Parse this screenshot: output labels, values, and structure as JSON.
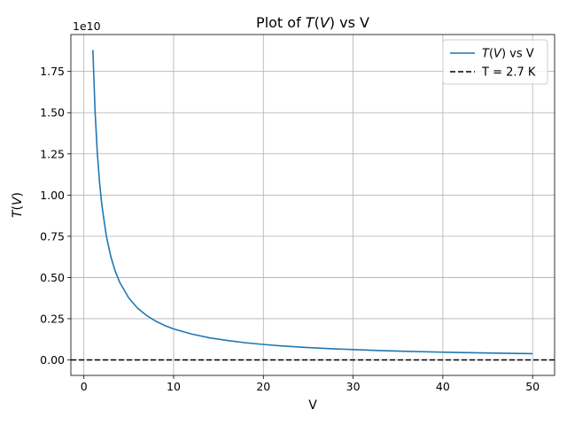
{
  "chart_data": {
    "type": "line",
    "title": "Plot of T(V) vs V",
    "xlabel": "V",
    "ylabel": "T(V)",
    "y_offset_label": "1e10",
    "xlim": [
      -1.45,
      52.45
    ],
    "ylim": [
      -0.094,
      1.974
    ],
    "y_scale_factor": 10000000000.0,
    "xticks": [
      0,
      10,
      20,
      30,
      40,
      50
    ],
    "xtick_labels": [
      "0",
      "10",
      "20",
      "30",
      "40",
      "50"
    ],
    "yticks": [
      0.0,
      0.25,
      0.5,
      0.75,
      1.0,
      1.25,
      1.5,
      1.75
    ],
    "ytick_labels": [
      "0.00",
      "0.25",
      "0.50",
      "0.75",
      "1.00",
      "1.25",
      "1.50",
      "1.75"
    ],
    "grid": true,
    "legend_position": "top-right",
    "series": [
      {
        "name": "T(V) vs V",
        "color": "#1f77b4",
        "style": "solid",
        "x": [
          1,
          1.25,
          1.5,
          1.75,
          2,
          2.5,
          3,
          3.5,
          4,
          5,
          6,
          7,
          8,
          9,
          10,
          12,
          14,
          16,
          18,
          20,
          22,
          25,
          28,
          30,
          33,
          36,
          40,
          45,
          50
        ],
        "y": [
          1.88,
          1.504,
          1.253,
          1.074,
          0.94,
          0.752,
          0.627,
          0.537,
          0.47,
          0.376,
          0.313,
          0.269,
          0.235,
          0.209,
          0.188,
          0.157,
          0.134,
          0.118,
          0.104,
          0.094,
          0.085,
          0.075,
          0.067,
          0.063,
          0.057,
          0.052,
          0.047,
          0.042,
          0.038
        ]
      },
      {
        "name": "T = 2.7 K",
        "color": "#000000",
        "style": "dashed",
        "constant_y": 2.7e-10
      }
    ]
  }
}
